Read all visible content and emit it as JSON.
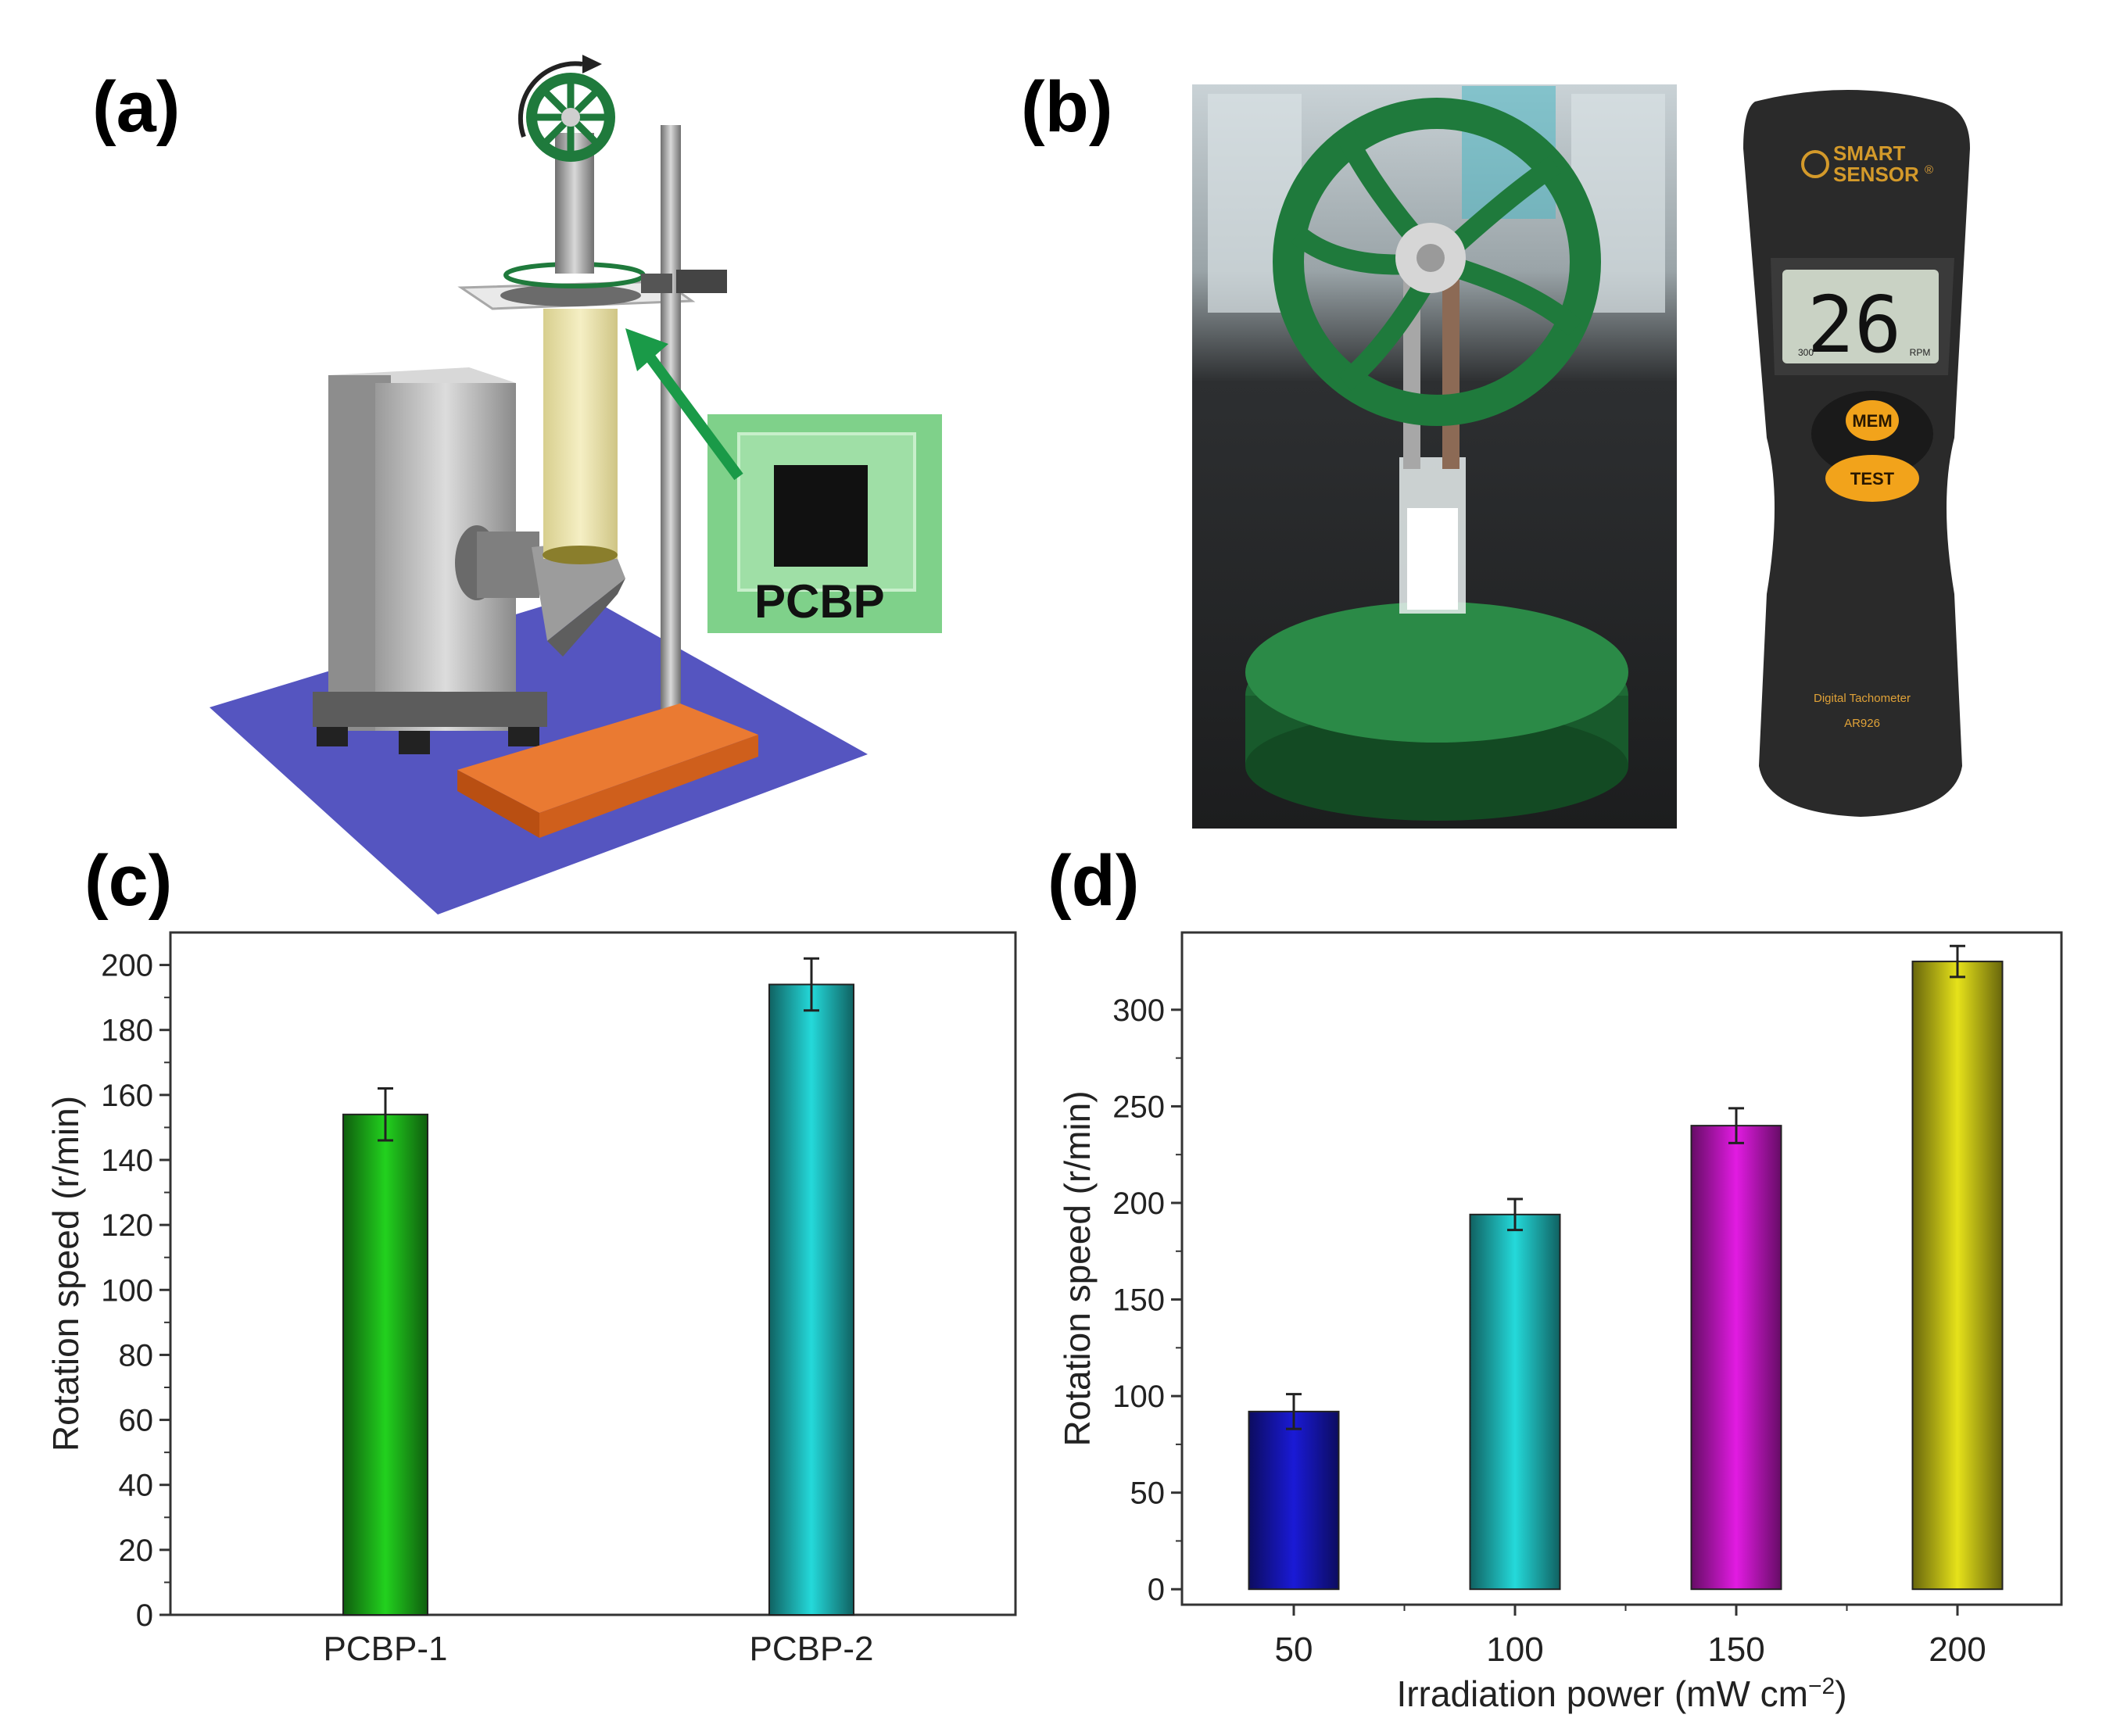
{
  "panels": {
    "a": {
      "label": "(a)",
      "inset_label": "PCBP",
      "colors": {
        "base_plate": "#5555c0",
        "stand_base": "#e66a22",
        "lamp_housing": "#bcbcbc",
        "inset_bg": "#7fd18a",
        "arrow": "#1a9a48",
        "flywheel": "#1f7a3c"
      }
    },
    "b": {
      "label": "(b)",
      "tachometer": {
        "brand_line1": "SMART",
        "brand_line2": "SENSOR",
        "brand_mark": "®",
        "display_value": "26",
        "display_unit": "RPM",
        "display_aux": "300",
        "button_mem": "MEM",
        "button_test": "TEST",
        "product_name": "Digital Tachometer",
        "model": "AR926"
      },
      "colors": {
        "flywheel": "#1f7a3c",
        "body": "#2a2a2a",
        "lcd": "#c9d2c4",
        "buttons": "#f2a31b"
      }
    },
    "c": {
      "label": "(c)"
    },
    "d": {
      "label": "(d)"
    }
  },
  "chart_data": [
    {
      "panel": "c",
      "type": "bar",
      "categories": [
        "PCBP-1",
        "PCBP-2"
      ],
      "values": [
        154,
        194
      ],
      "errors": [
        8,
        8
      ],
      "colors": [
        "#22d11e",
        "#24d9da"
      ],
      "ylabel": "Rotation speed (r/min)",
      "xlabel": "",
      "ylim": [
        0,
        210
      ],
      "yticks": [
        0,
        20,
        40,
        60,
        80,
        100,
        120,
        140,
        160,
        180,
        200
      ]
    },
    {
      "panel": "d",
      "type": "bar",
      "categories": [
        "50",
        "100",
        "150",
        "200"
      ],
      "values": [
        92,
        194,
        240,
        325
      ],
      "errors": [
        9,
        8,
        9,
        8
      ],
      "colors": [
        "#1a1ad6",
        "#24d9da",
        "#e21be2",
        "#e6e21a"
      ],
      "ylabel": "Rotation speed (r/min)",
      "xlabel": "Irradiation power (mW cm",
      "xlabel_sup": "−2",
      "xlabel_close": ")",
      "ylim": [
        -8,
        340
      ],
      "yticks": [
        0,
        50,
        100,
        150,
        200,
        250,
        300
      ]
    }
  ]
}
